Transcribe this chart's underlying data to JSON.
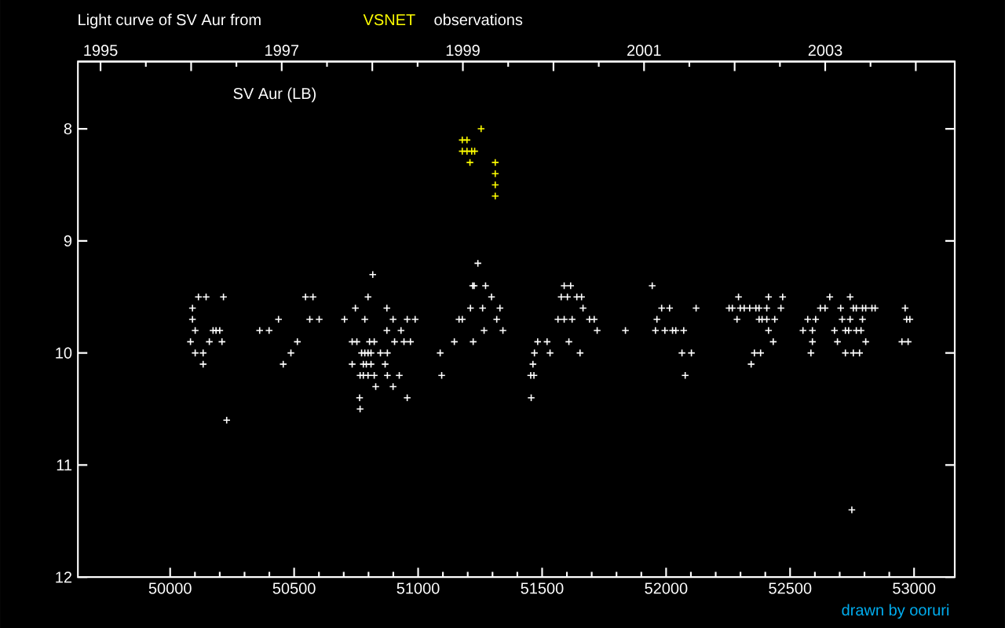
{
  "chart_data": {
    "type": "scatter",
    "title": "Light curve of SV Aur from",
    "annotations": [
      "observations",
      "SV Aur (LB)",
      "drawn by ooruri"
    ],
    "marker": "cross",
    "xlim": [
      49628,
      53164
    ],
    "xticks": [
      50000,
      50500,
      51000,
      51500,
      52000,
      52500,
      53000
    ],
    "ylim": [
      12,
      7.4
    ],
    "yticks": [
      8,
      9,
      10,
      11,
      12
    ],
    "x2lim": [
      1994.75,
      2004.43
    ],
    "x2ticks": [
      1995,
      {
        "value": 1996,
        "label": null
      },
      1997,
      {
        "value": 1998,
        "label": null
      },
      1999,
      {
        "value": 2000,
        "label": null
      },
      2001,
      {
        "value": 2002,
        "label": null
      },
      2003,
      {
        "value": 2004,
        "label": null
      }
    ],
    "series": [
      {
        "color": "#ffffff",
        "x": [
          50082,
          50090,
          50090,
          50101,
          50101,
          50114,
          50133,
          50133,
          50145,
          50158,
          50173,
          50185,
          50200,
          50209,
          50215,
          50228,
          50361,
          50399,
          50437,
          50456,
          50487,
          50513,
          50546,
          50563,
          50576,
          50601,
          50703,
          50734,
          50734,
          50747,
          50753,
          50764,
          50766,
          50766,
          50772,
          50779,
          50779,
          50785,
          50785,
          50791,
          50798,
          50798,
          50798,
          50804,
          50810,
          50810,
          50817,
          50823,
          50823,
          50829,
          50848,
          50867,
          50874,
          50874,
          50876,
          50876,
          50899,
          50899,
          50905,
          50924,
          50931,
          50943,
          50956,
          50956,
          50969,
          50988,
          51089,
          51095,
          51146,
          51165,
          51178,
          51211,
          51220,
          51222,
          51226,
          51241,
          51260,
          51266,
          51272,
          51296,
          51317,
          51330,
          51342,
          51454,
          51456,
          51463,
          51467,
          51469,
          51482,
          51520,
          51532,
          51564,
          51577,
          51589,
          51589,
          51602,
          51608,
          51615,
          51621,
          51640,
          51653,
          51659,
          51665,
          51691,
          51710,
          51722,
          51836,
          51944,
          51957,
          51963,
          51982,
          51995,
          52014,
          52026,
          52039,
          52064,
          52071,
          52077,
          52102,
          52121,
          52254,
          52267,
          52286,
          52292,
          52299,
          52315,
          52337,
          52343,
          52356,
          52362,
          52375,
          52375,
          52381,
          52387,
          52406,
          52406,
          52413,
          52413,
          52432,
          52438,
          52463,
          52470,
          52552,
          52571,
          52584,
          52590,
          52590,
          52603,
          52622,
          52641,
          52660,
          52679,
          52691,
          52704,
          52710,
          52723,
          52723,
          52736,
          52742,
          52742,
          52749,
          52755,
          52755,
          52767,
          52767,
          52780,
          52786,
          52792,
          52792,
          52805,
          52805,
          52830,
          52843,
          52951,
          52964,
          52970,
          52976,
          52983
        ],
        "values": [
          9.9,
          9.6,
          9.7,
          9.8,
          10.0,
          9.5,
          10.0,
          10.1,
          9.5,
          9.9,
          9.8,
          9.8,
          9.8,
          9.9,
          9.5,
          10.6,
          9.8,
          9.8,
          9.7,
          10.1,
          10.0,
          9.9,
          9.5,
          9.7,
          9.5,
          9.7,
          9.7,
          9.9,
          10.1,
          9.6,
          9.9,
          10.4,
          10.2,
          10.5,
          10.0,
          10.1,
          10.2,
          9.7,
          10.0,
          10.1,
          9.5,
          10.0,
          10.2,
          9.9,
          10.0,
          10.1,
          9.3,
          9.9,
          10.2,
          10.3,
          10.0,
          10.1,
          9.6,
          9.8,
          10.0,
          10.2,
          9.7,
          10.3,
          9.9,
          10.2,
          9.8,
          9.9,
          9.7,
          10.4,
          9.9,
          9.7,
          10.0,
          10.2,
          9.9,
          9.7,
          9.7,
          9.6,
          9.4,
          9.9,
          9.4,
          9.2,
          9.6,
          9.8,
          9.4,
          9.5,
          9.7,
          9.6,
          9.8,
          10.2,
          10.4,
          10.1,
          10.2,
          10.0,
          9.9,
          9.9,
          10.0,
          9.7,
          9.5,
          9.4,
          9.7,
          9.5,
          9.9,
          9.4,
          9.7,
          9.5,
          10.0,
          9.5,
          9.6,
          9.7,
          9.7,
          9.8,
          9.8,
          9.4,
          9.8,
          9.7,
          9.6,
          9.8,
          9.6,
          9.8,
          9.8,
          10.0,
          9.8,
          10.2,
          10.0,
          9.6,
          9.6,
          9.6,
          9.7,
          9.5,
          9.6,
          9.6,
          9.6,
          10.1,
          10.0,
          9.6,
          9.6,
          9.7,
          10.0,
          9.7,
          9.6,
          9.7,
          9.5,
          9.8,
          9.9,
          9.7,
          9.6,
          9.5,
          9.8,
          9.7,
          10.0,
          9.8,
          9.9,
          9.7,
          9.6,
          9.6,
          9.5,
          9.8,
          9.9,
          9.6,
          9.7,
          9.8,
          10.0,
          9.8,
          9.5,
          9.7,
          11.4,
          9.6,
          10.0,
          9.6,
          9.8,
          10.0,
          9.8,
          9.6,
          9.7,
          9.6,
          9.9,
          9.6,
          9.6,
          9.9,
          9.6,
          9.7,
          9.9,
          9.7
        ]
      },
      {
        "name": "VSNET",
        "color": "#ffff00",
        "x": [
          51178,
          51197,
          51178,
          51197,
          51216,
          51228,
          51209,
          51254,
          51311,
          51311,
          51311,
          51311
        ],
        "values": [
          8.1,
          8.1,
          8.2,
          8.2,
          8.2,
          8.2,
          8.3,
          8.0,
          8.3,
          8.4,
          8.5,
          8.6
        ]
      }
    ]
  }
}
